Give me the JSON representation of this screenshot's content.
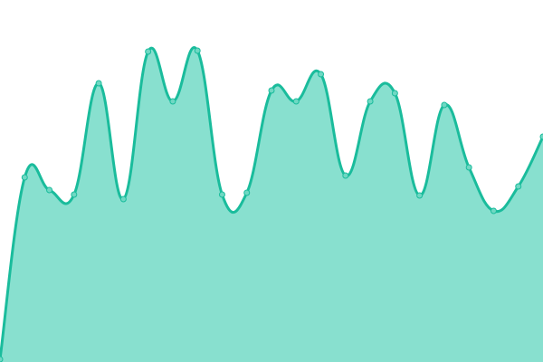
{
  "chart_data": {
    "type": "area",
    "title": "",
    "xlabel": "",
    "ylabel": "",
    "x": [
      0,
      1,
      2,
      3,
      4,
      5,
      6,
      7,
      8,
      9,
      10,
      11,
      12,
      13,
      14,
      15,
      16,
      17,
      18,
      19,
      20,
      21,
      22
    ],
    "values": [
      3,
      204,
      190,
      185,
      308,
      180,
      343,
      288,
      344,
      185,
      187,
      300,
      288,
      318,
      206,
      288,
      297,
      184,
      284,
      215,
      167,
      194,
      249
    ],
    "ylim": [
      0,
      400
    ],
    "grid": false,
    "axes_visible": false,
    "smooth": true,
    "colors": {
      "line": "#1abc9c",
      "fill": "#88e0cf",
      "point": "#6fd8c3"
    }
  }
}
